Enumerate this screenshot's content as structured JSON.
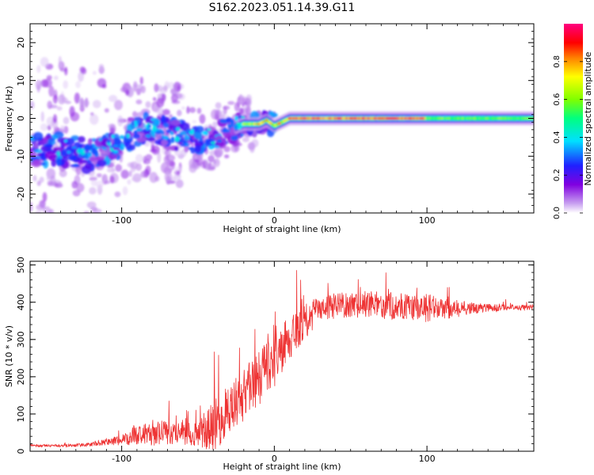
{
  "figure": {
    "title": "S162.2023.051.14.39.G11"
  },
  "chart_data": [
    {
      "type": "heatmap",
      "title": "",
      "xlabel": "Height of straight line (km)",
      "ylabel": "Frequency (Hz)",
      "xlim": [
        -160,
        170
      ],
      "ylim": [
        -25,
        25
      ],
      "x_ticks": [
        -100,
        0,
        100
      ],
      "y_ticks": [
        -20,
        -10,
        0,
        10,
        20
      ],
      "grid": false,
      "colormap": [
        "#ffffff",
        "#c8a0f0",
        "#8000e0",
        "#2020ff",
        "#00e0ff",
        "#00ff80",
        "#80ff00",
        "#ffff00",
        "#ff8000",
        "#ff0000",
        "#ff0080"
      ],
      "colorbar": {
        "label": "Normalized spectral amplitude",
        "range": [
          0,
          1
        ],
        "ticks": [
          0.0,
          0.2,
          0.4,
          0.6,
          0.8
        ]
      },
      "ridge": {
        "x": [
          -160,
          -140,
          -120,
          -100,
          -90,
          -80,
          -70,
          -60,
          -50,
          -40,
          -30,
          -20,
          -10,
          -5,
          0,
          5,
          10,
          20,
          40,
          60,
          80,
          100,
          120,
          140,
          170
        ],
        "freq": [
          -9,
          -8,
          -10,
          -6,
          -3,
          -2,
          -4,
          -5,
          -6,
          -5,
          -3,
          -1.5,
          -1.5,
          -0.5,
          -2,
          -1,
          0,
          0,
          0,
          0,
          0,
          0,
          0,
          0,
          0
        ]
      }
    },
    {
      "type": "line",
      "title": "",
      "xlabel": "Height of straight line (km)",
      "ylabel": "SNR (10 * v/v)",
      "xlim": [
        -160,
        170
      ],
      "ylim": [
        0,
        510
      ],
      "x_ticks": [
        -100,
        0,
        100
      ],
      "y_ticks": [
        0,
        100,
        200,
        300,
        400,
        500
      ],
      "grid": false,
      "series": [
        {
          "color": "#ee3333",
          "envelope": {
            "x": [
              -160,
              -140,
              -120,
              -110,
              -100,
              -90,
              -80,
              -70,
              -60,
              -50,
              -45,
              -40,
              -35,
              -30,
              -20,
              -10,
              0,
              10,
              20,
              30,
              40,
              60,
              80,
              100,
              120,
              140,
              170
            ],
            "base": [
              15,
              15,
              18,
              25,
              30,
              45,
              50,
              50,
              45,
              45,
              50,
              60,
              90,
              110,
              150,
              200,
              240,
              300,
              350,
              380,
              390,
              395,
              390,
              385,
              380,
              385,
              385
            ],
            "amplitude": [
              4,
              5,
              8,
              12,
              20,
              40,
              50,
              45,
              40,
              50,
              70,
              110,
              100,
              90,
              110,
              110,
              100,
              80,
              70,
              50,
              50,
              50,
              55,
              55,
              30,
              15,
              10
            ]
          }
        }
      ]
    }
  ]
}
